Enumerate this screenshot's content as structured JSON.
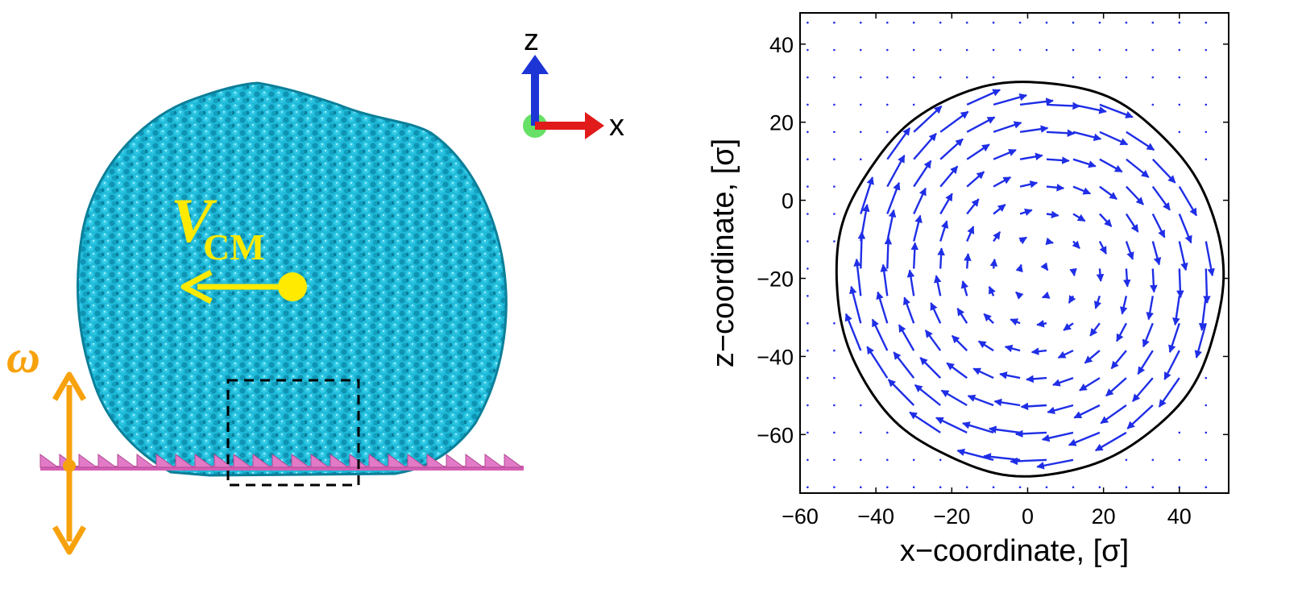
{
  "colors": {
    "droplet": "#1fb9d8",
    "droplet_dark": "#0c7f99",
    "substrate": "#e27ac7",
    "vcm": "#ffea00",
    "omega": "#f7a20c",
    "axis_x": "#e11a1a",
    "axis_z": "#1e35d6",
    "axis_y": "#66e066",
    "vector": "#1f2ee6",
    "contour": "#000000"
  },
  "simulation": {
    "axis_triad": {
      "z_label": "z",
      "x_label": "x"
    },
    "velocity_label": {
      "symbol": "V",
      "subscript": "CM"
    },
    "oscillation_label": "ω"
  },
  "chart_data": {
    "type": "quiver",
    "xlabel": "x−coordinate, [σ]",
    "ylabel": "z−coordinate, [σ]",
    "xlim": [
      -60,
      53
    ],
    "ylim": [
      -75,
      48
    ],
    "xticks": [
      -60,
      -40,
      -20,
      0,
      20,
      40
    ],
    "xtick_labels": [
      "−60",
      "−40",
      "−20",
      "0",
      "20",
      "40"
    ],
    "yticks": [
      -60,
      -40,
      -20,
      0,
      20,
      40
    ],
    "ytick_labels": [
      "−60",
      "−40",
      "−20",
      "0",
      "20",
      "40"
    ],
    "grid": false,
    "grid_spacing": 7,
    "droplet_boundary": {
      "center": [
        0.5,
        -20
      ],
      "radius_x": 51,
      "radius_y": 50.5
    },
    "vortex_center": [
      3,
      -19
    ],
    "vector_scale": 0.2
  }
}
